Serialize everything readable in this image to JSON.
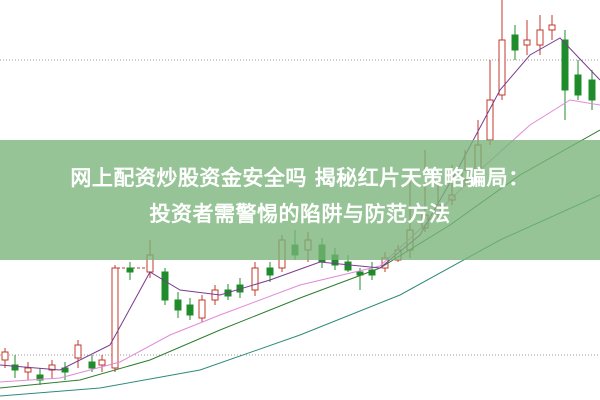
{
  "headline": {
    "line1": "网上配资炒股资金安全吗 揭秘红片天策略骗局：",
    "line2": "投资者需警惕的陷阱与防范方法"
  },
  "colors": {
    "up_candle": "#c0392b",
    "down_candle": "#1e8c2a",
    "banner": "#7ab87a",
    "ma_purple": "#7a3b8f",
    "ma_pink": "#e08ad8",
    "ma_green": "#2e7d32",
    "ma_teal": "#2e8b7a"
  }
}
